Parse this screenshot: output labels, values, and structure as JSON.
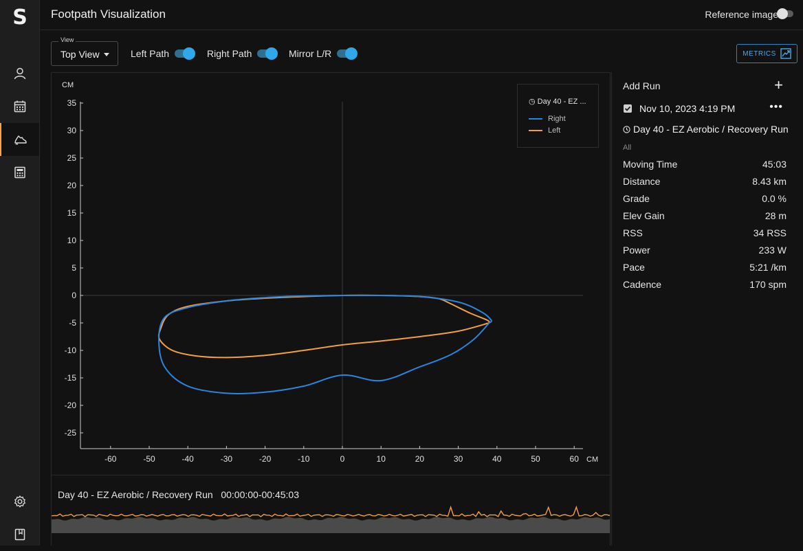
{
  "app": {
    "logo": "S",
    "page_title": "Footpath Visualization"
  },
  "sidebar": {
    "items": [
      {
        "name": "user-icon",
        "active": false
      },
      {
        "name": "calendar-icon",
        "active": false
      },
      {
        "name": "running-shoe-icon",
        "active": true
      },
      {
        "name": "calculator-icon",
        "active": false
      }
    ],
    "bottom": [
      {
        "name": "gear-icon"
      },
      {
        "name": "notebook-icon"
      }
    ]
  },
  "header": {
    "reference_image_label": "Reference image",
    "reference_image_on": false
  },
  "toolbar": {
    "view_label": "View",
    "view_value": "Top View",
    "left_path_label": "Left Path",
    "right_path_label": "Right Path",
    "mirror_label": "Mirror L/R",
    "metrics_label": "METRICS"
  },
  "chart_data": {
    "type": "line",
    "xlabel": "CM",
    "ylabel": "CM",
    "xlim": [
      -68,
      62
    ],
    "ylim": [
      -28,
      35
    ],
    "x_ticks": [
      -60,
      -50,
      -40,
      -30,
      -20,
      -10,
      0,
      10,
      20,
      30,
      40,
      50,
      60
    ],
    "y_ticks": [
      35,
      30,
      25,
      20,
      15,
      10,
      5,
      0,
      -5,
      -10,
      -15,
      -20,
      -25
    ],
    "legend_title": "Day 40 - EZ ...",
    "legend_placement": "top-right",
    "series": [
      {
        "name": "Right",
        "color": "#2a86e0",
        "x": [
          38,
          34,
          28,
          20,
          10,
          0,
          -10,
          -20,
          -30,
          -40,
          -46,
          -47.5,
          -46,
          -40,
          -30,
          -20,
          -10,
          0,
          10,
          20,
          30,
          36,
          38.5,
          38
        ],
        "y": [
          -5,
          -8,
          -10.8,
          -13,
          -15.5,
          -14.5,
          -16.5,
          -17.6,
          -17.8,
          -16.5,
          -13,
          -8,
          -4,
          -2.2,
          -1,
          -0.4,
          -0.1,
          0,
          0,
          -0.2,
          -1.2,
          -3,
          -4.5,
          -5
        ]
      },
      {
        "name": "Left",
        "color": "#f2a042",
        "x": [
          38,
          30,
          20,
          10,
          0,
          -10,
          -20,
          -30,
          -38,
          -44,
          -47.3,
          -47,
          -45,
          -40,
          -30,
          -20,
          -10,
          0,
          10,
          20,
          25,
          28,
          33,
          37.5,
          38
        ],
        "y": [
          -5,
          -6.5,
          -7.5,
          -8.3,
          -9,
          -10,
          -10.9,
          -11.3,
          -11,
          -10,
          -8,
          -6,
          -3.5,
          -2,
          -1,
          -0.5,
          -0.2,
          0,
          0,
          -0.2,
          -0.6,
          -1.5,
          -3.2,
          -4.5,
          -5
        ]
      }
    ]
  },
  "runs_panel": {
    "add_run_label": "Add Run",
    "run_date": "Nov 10, 2023 4:19 PM",
    "run_name": "Day 40 - EZ Aerobic / Recovery Run",
    "filter_label": "All",
    "metrics": [
      {
        "label": "Moving Time",
        "value": "45:03"
      },
      {
        "label": "Distance",
        "value": "8.43 km"
      },
      {
        "label": "Grade",
        "value": "0.0 %"
      },
      {
        "label": "Elev Gain",
        "value": "28 m"
      },
      {
        "label": "RSS",
        "value": "34 RSS"
      },
      {
        "label": "Power",
        "value": "233 W"
      },
      {
        "label": "Pace",
        "value": "5:21 /km"
      },
      {
        "label": "Cadence",
        "value": "170 spm"
      }
    ]
  },
  "timeline": {
    "run_name": "Day 40 - EZ Aerobic / Recovery Run",
    "time_range": "00:00:00-00:45:03"
  },
  "colors": {
    "accent": "#2fa7e8",
    "sidebar_active": "#f7a440",
    "right": "#2a86e0",
    "left": "#f2a042"
  }
}
